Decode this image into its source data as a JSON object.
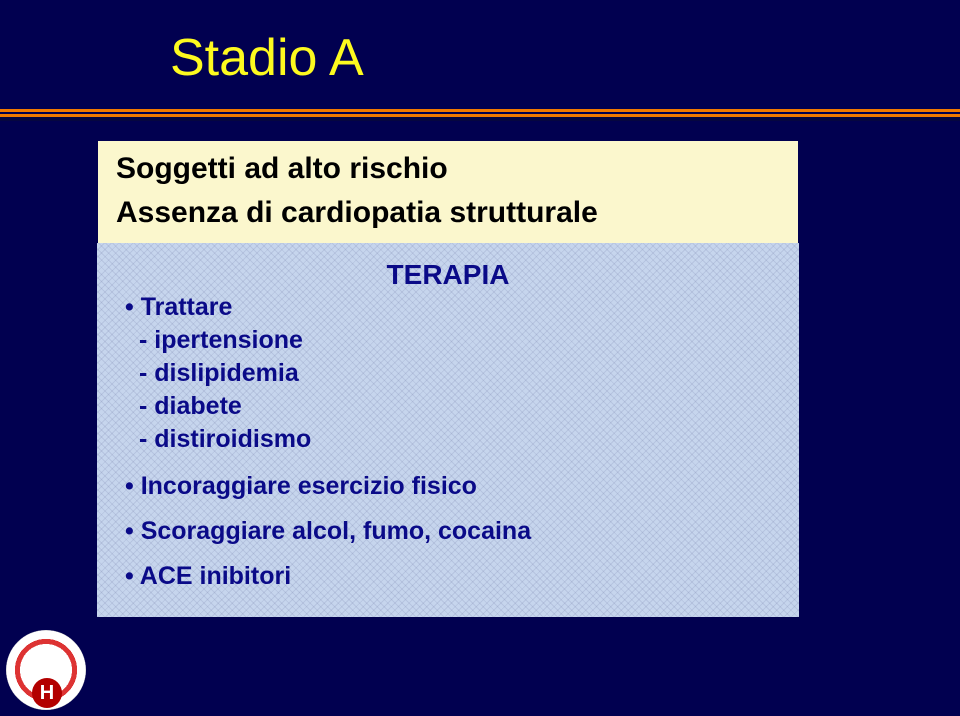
{
  "slide": {
    "title": "Stadio A",
    "background_color": "#010050",
    "title_color": "#fdfa1f",
    "divider_color": "#f27900"
  },
  "header_box": {
    "line1": "Soggetti ad alto rischio",
    "line2": "Assenza di cardiopatia strutturale",
    "bg_color": "#fbf7cd",
    "text_color": "#000000"
  },
  "therapy_box": {
    "title": "TERAPIA",
    "bg_color": "#c6d5ed",
    "text_color": "#0a0a88",
    "bullet1_lead": "• Trattare",
    "sub_items": [
      "- ipertensione",
      "- dislipidemia",
      "- diabete",
      "- distiroidismo"
    ],
    "bullet2": "• Incoraggiare esercizio fisico",
    "bullet3": "• Scoraggiare alcol, fumo, cocaina",
    "bullet4": "• ACE inibitori"
  },
  "logo": {
    "letter": "H"
  }
}
